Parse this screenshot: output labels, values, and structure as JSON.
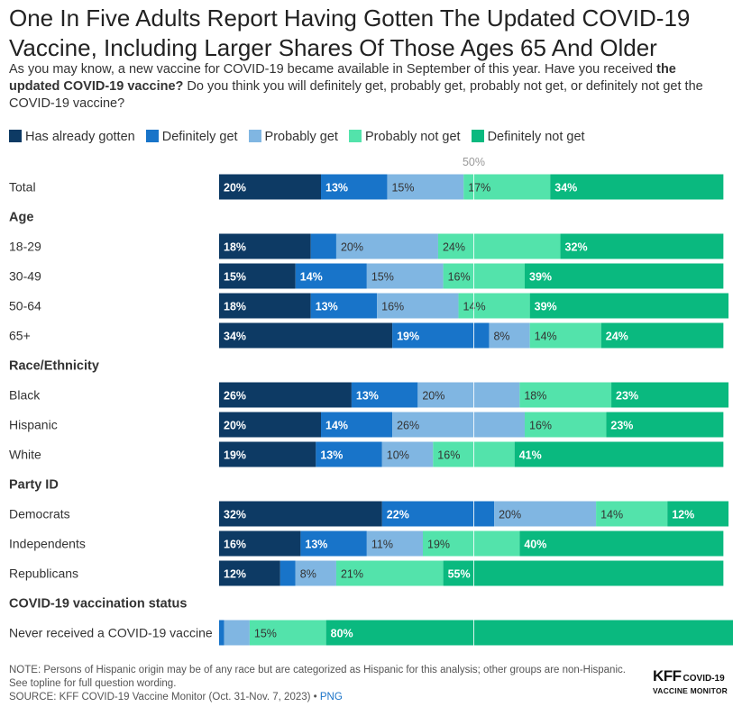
{
  "title": "One In Five Adults Report Having Gotten The Updated COVID-19 Vaccine, Including Larger Shares Of Those Ages 65 And Older",
  "subtitle": {
    "part1": "As you may know, a new vaccine for COVID-19 became available in September of this year. Have you received ",
    "bold": "the updated COVID-19 vaccine?",
    "part2": " Do you think you will definitely get, probably get, probably not get, or definitely not get the COVID-19 vaccine?"
  },
  "colors": {
    "has_already_gotten": "#0d3a64",
    "definitely_get": "#1874c9",
    "probably_get": "#80b6e2",
    "probably_not_get": "#53e3ab",
    "definitely_not_get": "#0ab97f",
    "label_dark": "#ffffff",
    "label_light": "#333333"
  },
  "chart_data": {
    "type": "bar",
    "stacked": true,
    "orientation": "horizontal",
    "xlim": [
      0,
      100
    ],
    "reference_line": {
      "value": 50,
      "label": "50%"
    },
    "value_suffix": "%",
    "series": [
      {
        "name": "Has already gotten",
        "color_key": "has_already_gotten",
        "label_color": "label_dark"
      },
      {
        "name": "Definitely get",
        "color_key": "definitely_get",
        "label_color": "label_dark"
      },
      {
        "name": "Probably get",
        "color_key": "probably_get",
        "label_color": "label_light"
      },
      {
        "name": "Probably not get",
        "color_key": "probably_not_get",
        "label_color": "label_light"
      },
      {
        "name": "Definitely not get",
        "color_key": "definitely_not_get",
        "label_color": "label_dark"
      }
    ],
    "rows": [
      {
        "kind": "bar",
        "label": "Total",
        "values": [
          20,
          13,
          15,
          17,
          34
        ]
      },
      {
        "kind": "header",
        "label": "Age"
      },
      {
        "kind": "bar",
        "label": "18-29",
        "values": [
          18,
          5,
          20,
          24,
          32
        ]
      },
      {
        "kind": "bar",
        "label": "30-49",
        "values": [
          15,
          14,
          15,
          16,
          39
        ]
      },
      {
        "kind": "bar",
        "label": "50-64",
        "values": [
          18,
          13,
          16,
          14,
          39
        ]
      },
      {
        "kind": "bar",
        "label": "65+",
        "values": [
          34,
          19,
          8,
          14,
          24
        ]
      },
      {
        "kind": "header",
        "label": "Race/Ethnicity"
      },
      {
        "kind": "bar",
        "label": "Black",
        "values": [
          26,
          13,
          20,
          18,
          23
        ]
      },
      {
        "kind": "bar",
        "label": "Hispanic",
        "values": [
          20,
          14,
          26,
          16,
          23
        ]
      },
      {
        "kind": "bar",
        "label": "White",
        "values": [
          19,
          13,
          10,
          16,
          41
        ]
      },
      {
        "kind": "header",
        "label": "Party ID"
      },
      {
        "kind": "bar",
        "label": "Democrats",
        "values": [
          32,
          22,
          20,
          14,
          12
        ]
      },
      {
        "kind": "bar",
        "label": "Independents",
        "values": [
          16,
          13,
          11,
          19,
          40
        ]
      },
      {
        "kind": "bar",
        "label": "Republicans",
        "values": [
          12,
          3,
          8,
          21,
          55
        ]
      },
      {
        "kind": "header",
        "label": "COVID-19 vaccination status"
      },
      {
        "kind": "bar",
        "label": "Never received a COVID-19 vaccine",
        "values": [
          0,
          1,
          5,
          15,
          80
        ]
      }
    ]
  },
  "notes": {
    "note1": "NOTE: Persons of Hispanic origin may be of any race but are categorized as Hispanic for this analysis; other groups are non-Hispanic.",
    "note2": "See topline for full question wording.",
    "source": "SOURCE: KFF COVID-19 Vaccine Monitor (Oct. 31-Nov. 7, 2023) • ",
    "png_link": "PNG"
  },
  "logo": {
    "kff": "KFF",
    "covid": "COVID-19",
    "monitor": "VACCINE MONITOR"
  }
}
